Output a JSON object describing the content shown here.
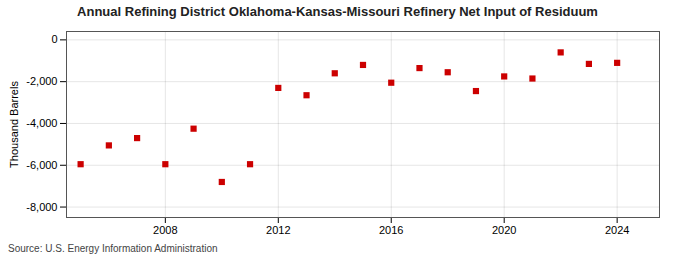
{
  "chart_data": {
    "type": "scatter",
    "title": "Annual Refining District Oklahoma-Kansas-Missouri Refinery Net Input of Residuum",
    "ylabel": "Thousand Barrels",
    "source": "Source: U.S. Energy Information Administration",
    "x": [
      2005,
      2006,
      2007,
      2008,
      2009,
      2010,
      2011,
      2012,
      2013,
      2014,
      2015,
      2016,
      2017,
      2018,
      2019,
      2020,
      2021,
      2022,
      2023,
      2024
    ],
    "values": [
      -5950,
      -5050,
      -4700,
      -5950,
      -4250,
      -6800,
      -5950,
      -2300,
      -2650,
      -1600,
      -1200,
      -2050,
      -1350,
      -1550,
      -2450,
      -1750,
      -1850,
      -600,
      -1150,
      -1100
    ],
    "color": "#cc0000",
    "marker": "square",
    "xlim": [
      2004.5,
      2025.5
    ],
    "xticks": [
      2008,
      2012,
      2016,
      2020,
      2024
    ],
    "ylim": [
      -8500,
      400
    ],
    "yticks": [
      0,
      {
        "value": -2000,
        "label": "-2,000"
      },
      {
        "value": -4000,
        "label": "-4,000"
      },
      {
        "value": -6000,
        "label": "-6,000"
      },
      {
        "value": -8000,
        "label": "-8,000"
      }
    ],
    "grid": true
  }
}
